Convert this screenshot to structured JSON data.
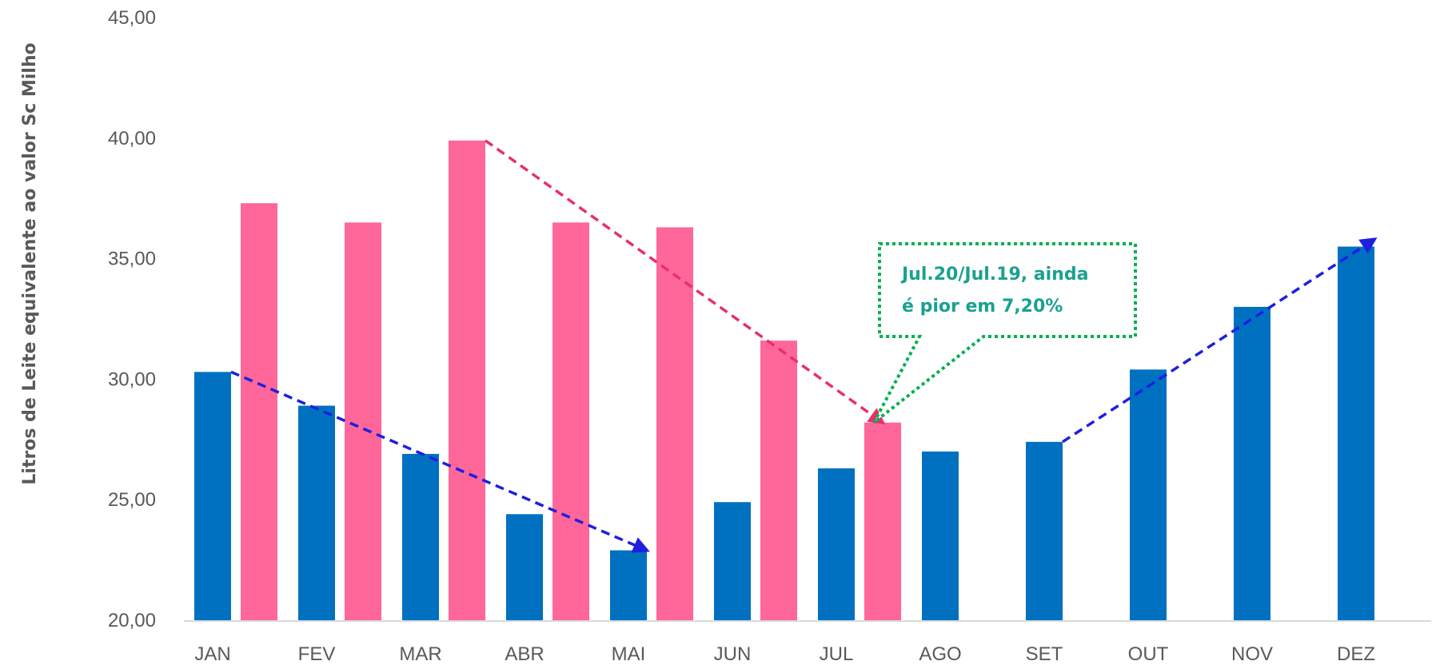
{
  "chart_data": {
    "type": "bar",
    "title": "",
    "xlabel": "",
    "ylabel": "Litros de Leite equivalente ao valor Sc Milho",
    "ylim": [
      20,
      45
    ],
    "yticks": [
      "20,00",
      "25,00",
      "30,00",
      "35,00",
      "40,00",
      "45,00"
    ],
    "ytick_values": [
      20,
      25,
      30,
      35,
      40,
      45
    ],
    "categories": [
      "JAN",
      "FEV",
      "MAR",
      "ABR",
      "MAI",
      "JUN",
      "JUL",
      "AGO",
      "SET",
      "OUT",
      "NOV",
      "DEZ"
    ],
    "grid": false,
    "legend": "none",
    "series": [
      {
        "color": "#0070c0",
        "values": [
          30.3,
          28.9,
          26.9,
          24.4,
          22.9,
          24.9,
          26.3,
          27.0,
          27.4,
          30.4,
          33.0,
          35.5
        ]
      },
      {
        "color": "#ff6699",
        "values": [
          37.3,
          36.5,
          39.9,
          36.5,
          36.3,
          31.6,
          28.2,
          null,
          null,
          null,
          null,
          null
        ]
      }
    ],
    "annotations": [
      {
        "type": "callout",
        "lines": [
          "Jul.20/Jul.19, ainda",
          "é pior em 7,20%"
        ],
        "text_color": "#1aa191",
        "border_color": "#00b050",
        "points_to": {
          "category": "JUL",
          "value": 28.2
        }
      },
      {
        "type": "trend-arrow",
        "color": "#e8306a",
        "from": {
          "category": "MAR",
          "value": 39.9
        },
        "to": {
          "category": "JUL",
          "value": 28.2
        }
      },
      {
        "type": "trend-arrow",
        "color": "#1f1fe0",
        "from": {
          "category": "JAN",
          "value": 30.3
        },
        "to": {
          "category": "MAI",
          "value": 22.9
        }
      },
      {
        "type": "trend-arrow",
        "color": "#1f1fe0",
        "from": {
          "category": "SET",
          "value": 27.4
        },
        "to": {
          "category": "DEZ",
          "value": 35.8
        }
      }
    ]
  }
}
